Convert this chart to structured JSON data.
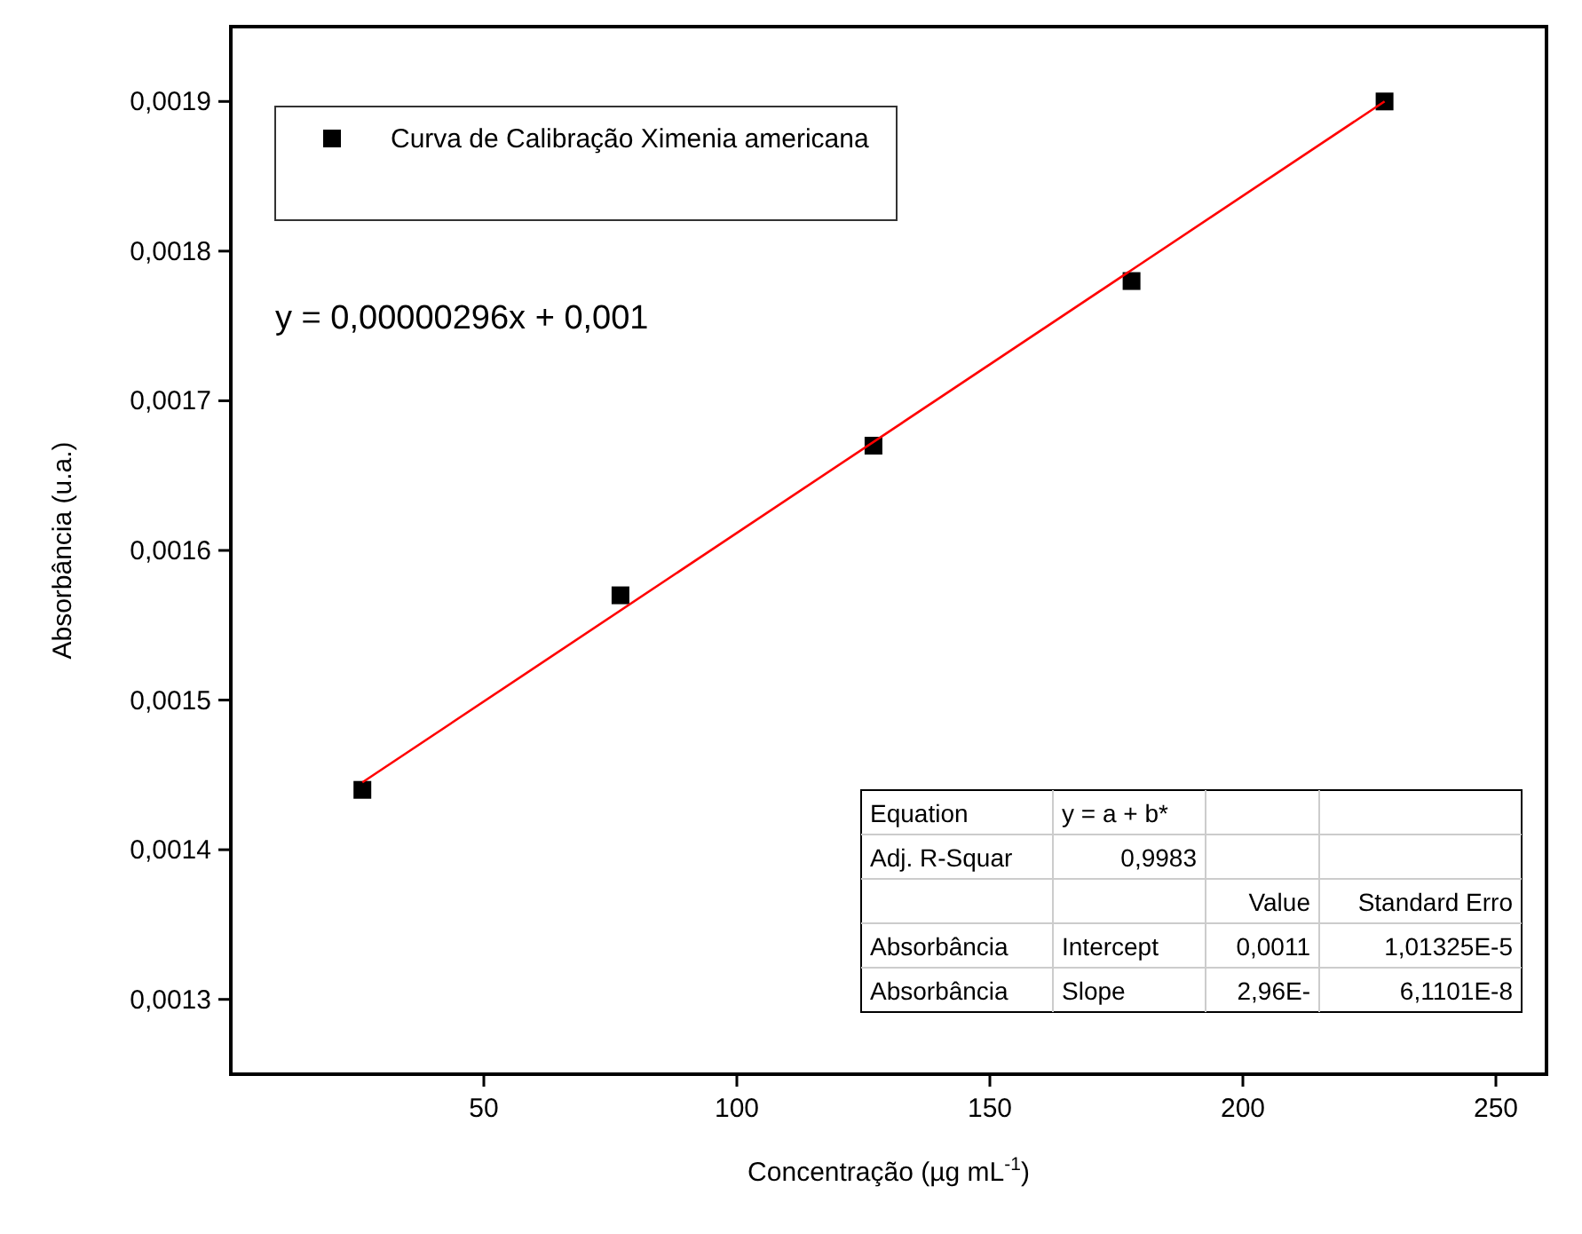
{
  "chart_data": {
    "type": "scatter",
    "xlabel": "Concentração (µg mL$^{-1}$)",
    "ylabel": "Absorbância (u.a.)",
    "xlim": [
      0,
      260
    ],
    "xticks": [
      50,
      100,
      150,
      200,
      250
    ],
    "ylim": [
      0.00125,
      0.00195
    ],
    "yticks": [
      {
        "value": 0.0013,
        "label": "0,0013"
      },
      {
        "value": 0.0014,
        "label": "0,0014"
      },
      {
        "value": 0.0015,
        "label": "0,0015"
      },
      {
        "value": 0.0016,
        "label": "0,0016"
      },
      {
        "value": 0.0017,
        "label": "0,0017"
      },
      {
        "value": 0.0018,
        "label": "0,0018"
      },
      {
        "value": 0.0019,
        "label": "0,0019"
      }
    ],
    "legend": "top left",
    "grid": false,
    "series": [
      {
        "name": "Curva de Calibração Ximenia americana",
        "marker": "square",
        "color": "#000000",
        "x": [
          26,
          77,
          127,
          178,
          228
        ],
        "values": [
          0.00144,
          0.00157,
          0.00167,
          0.00178,
          0.0019
        ]
      },
      {
        "type": "line",
        "color": "#ff0000",
        "x": [
          26,
          228
        ],
        "values": [
          0.001445,
          0.0019
        ]
      }
    ],
    "annotations": [
      "y = 0,00000296x + 0,001",
      "Equation",
      "y = a + b*",
      "Adj. R-Squar",
      "0,9983",
      "Value",
      "Standard Erro",
      "Absorbância",
      "Intercept",
      "0,0011",
      "1,01325E-5",
      "Absorbância",
      "Slope",
      "2,96E-",
      "6,1101E-8"
    ]
  }
}
